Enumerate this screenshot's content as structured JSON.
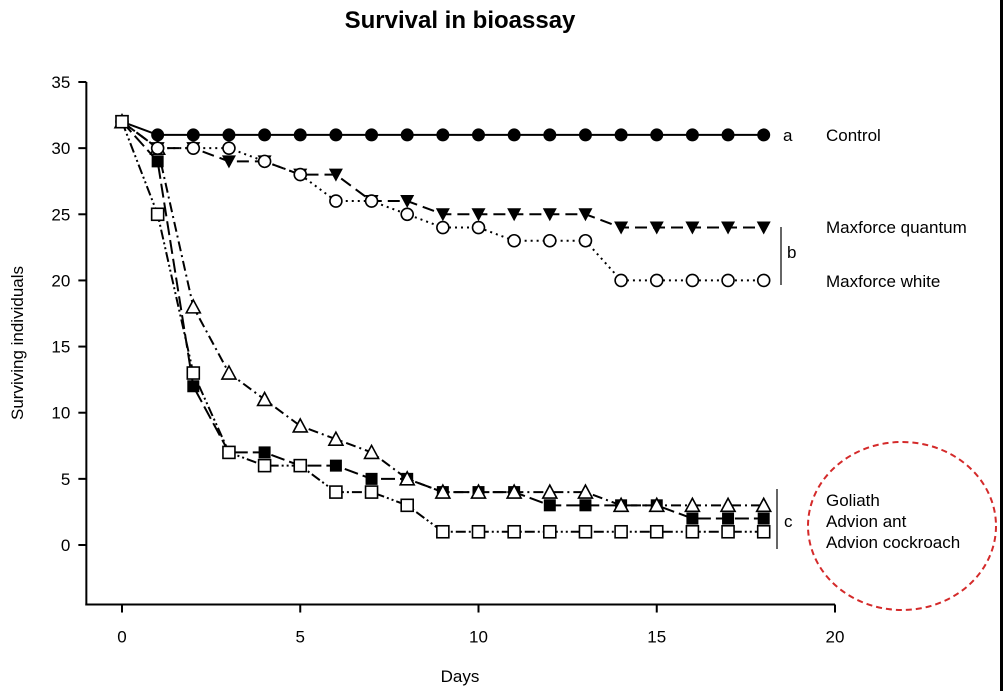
{
  "chart_data": {
    "type": "line",
    "title": "Survival in bioassay",
    "xlabel": "Days",
    "ylabel": "Surviving individuals",
    "xlim": [
      -1,
      20
    ],
    "ylim": [
      -4.5,
      35
    ],
    "xticks": [
      0,
      5,
      10,
      15,
      20
    ],
    "yticks": [
      0,
      5,
      10,
      15,
      20,
      25,
      30,
      35
    ],
    "grid": false,
    "x": [
      0,
      1,
      2,
      3,
      4,
      5,
      6,
      7,
      8,
      9,
      10,
      11,
      12,
      13,
      14,
      15,
      16,
      17,
      18
    ],
    "series": [
      {
        "name": "Control",
        "marker": "filled-circle",
        "line": "solid",
        "values": [
          32,
          31,
          31,
          31,
          31,
          31,
          31,
          31,
          31,
          31,
          31,
          31,
          31,
          31,
          31,
          31,
          31,
          31,
          31
        ]
      },
      {
        "name": "Maxforce quantum",
        "marker": "filled-down-triangle",
        "line": "long-dash",
        "values": [
          32,
          30,
          30,
          29,
          29,
          28,
          28,
          26,
          26,
          25,
          25,
          25,
          25,
          25,
          24,
          24,
          24,
          24,
          24
        ]
      },
      {
        "name": "Maxforce white",
        "marker": "open-circle",
        "line": "dotted",
        "values": [
          32,
          30,
          30,
          30,
          29,
          28,
          26,
          26,
          25,
          24,
          24,
          23,
          23,
          23,
          20,
          20,
          20,
          20,
          20
        ]
      },
      {
        "name": "Goliath",
        "marker": "open-triangle",
        "line": "dash-dot",
        "values": [
          32,
          30,
          18,
          13,
          11,
          9,
          8,
          7,
          5,
          4,
          4,
          4,
          4,
          4,
          3,
          3,
          3,
          3,
          3
        ]
      },
      {
        "name": "Advion ant",
        "marker": "filled-square",
        "line": "dash",
        "values": [
          32,
          29,
          12,
          7,
          7,
          6,
          6,
          5,
          5,
          4,
          4,
          4,
          3,
          3,
          3,
          3,
          2,
          2,
          2
        ]
      },
      {
        "name": "Advion cockroach",
        "marker": "open-square",
        "line": "dash-dot-dot",
        "values": [
          32,
          25,
          13,
          7,
          6,
          6,
          4,
          4,
          3,
          1,
          1,
          1,
          1,
          1,
          1,
          1,
          1,
          1,
          1
        ]
      }
    ],
    "annotations": {
      "groups": [
        {
          "letter": "a",
          "members": [
            "Control"
          ]
        },
        {
          "letter": "b",
          "members": [
            "Maxforce quantum",
            "Maxforce white"
          ]
        },
        {
          "letter": "c",
          "members": [
            "Goliath",
            "Advion ant",
            "Advion cockroach"
          ]
        }
      ],
      "series_labels": [
        "Control",
        "Maxforce quantum",
        "Maxforce white",
        "Goliath",
        "Advion ant",
        "Advion cockroach"
      ],
      "highlight": {
        "shape": "dashed-ellipse",
        "color": "#d42a2a",
        "around": [
          "Goliath",
          "Advion ant",
          "Advion cockroach"
        ]
      }
    }
  }
}
